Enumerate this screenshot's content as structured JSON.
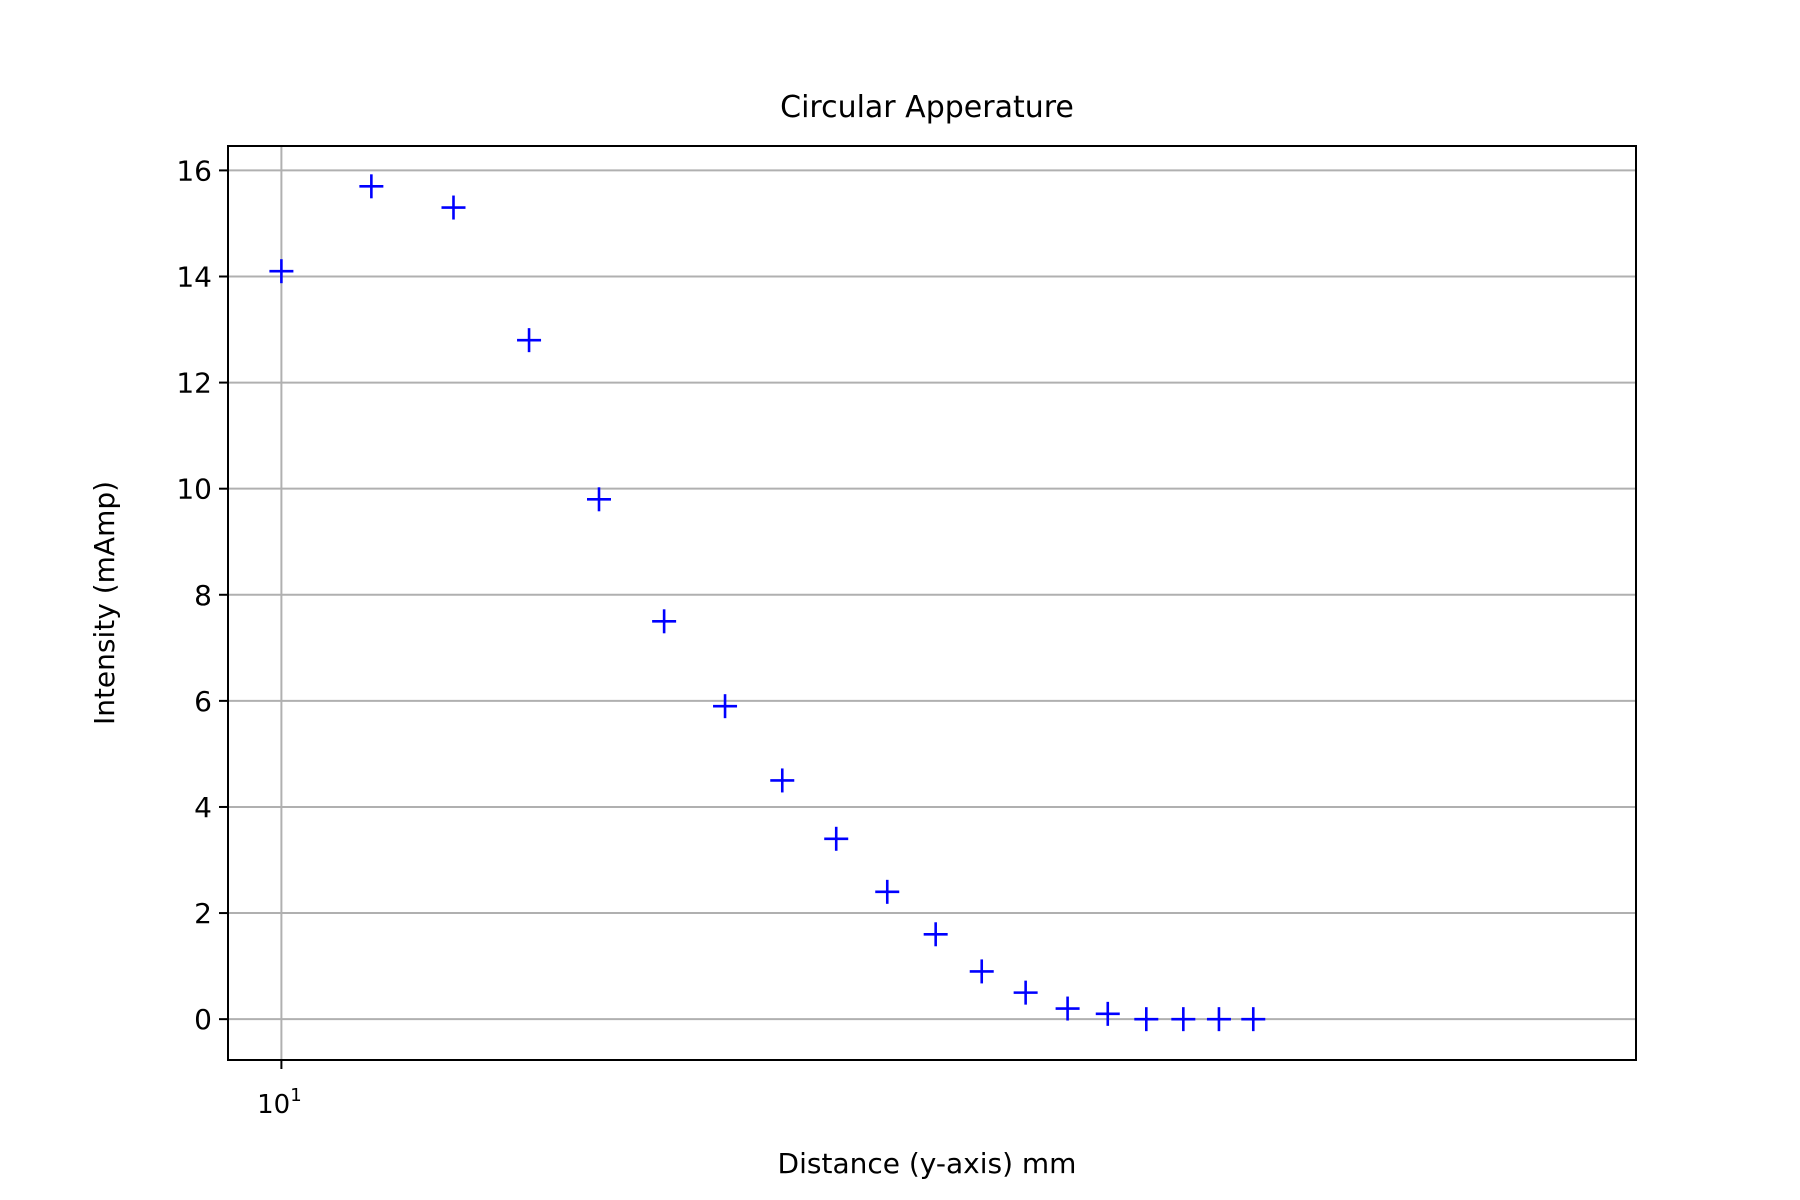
{
  "chart_data": {
    "type": "scatter",
    "title": "Circular Apperature",
    "xlabel": "Distance (y-axis) mm",
    "ylabel": "Intensity (mAmp)",
    "x_scale": "log",
    "x_tick_label": "10",
    "x_tick_exponent": "1",
    "x_tick_value": 10,
    "xlim": [
      9.45,
      42
    ],
    "ylim": [
      -0.77,
      16.46
    ],
    "y_ticks": [
      0,
      2,
      4,
      6,
      8,
      10,
      12,
      14,
      16
    ],
    "grid": true,
    "marker": "+",
    "series": [
      {
        "color": "#0000ff",
        "points": [
          {
            "x": 10,
            "y": 14.1
          },
          {
            "x": 11,
            "y": 15.7
          },
          {
            "x": 12,
            "y": 15.3
          },
          {
            "x": 13,
            "y": 12.8
          },
          {
            "x": 14,
            "y": 9.8
          },
          {
            "x": 15,
            "y": 7.5
          },
          {
            "x": 16,
            "y": 5.9
          },
          {
            "x": 17,
            "y": 4.5
          },
          {
            "x": 18,
            "y": 3.4
          },
          {
            "x": 19,
            "y": 2.4
          },
          {
            "x": 20,
            "y": 1.6
          },
          {
            "x": 21,
            "y": 0.9
          },
          {
            "x": 22,
            "y": 0.5
          },
          {
            "x": 23,
            "y": 0.2
          },
          {
            "x": 24,
            "y": 0.1
          },
          {
            "x": 25,
            "y": 0.0
          },
          {
            "x": 26,
            "y": 0.0
          },
          {
            "x": 27,
            "y": 0.0
          },
          {
            "x": 28,
            "y": 0.0
          }
        ]
      }
    ]
  }
}
